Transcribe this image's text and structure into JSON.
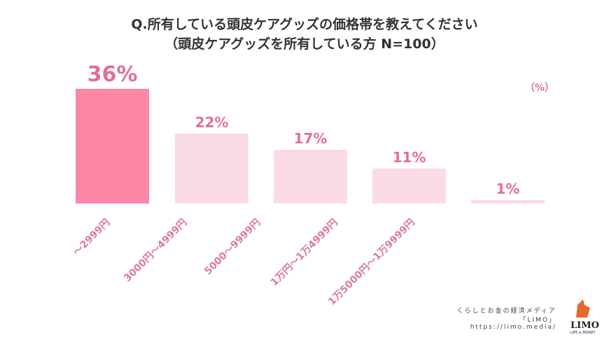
{
  "chart_data": {
    "type": "bar",
    "title": "Q.所有している頭皮ケアグッズの価格帯を教えてください",
    "subtitle": "（頭皮ケアグッズを所有している方 N=100）",
    "unit": "（%）",
    "categories": [
      "～2999円",
      "3000円～4999円",
      "5000～9999円",
      "1万円～1万4999円",
      "1万5000円～1万9999円"
    ],
    "values": [
      36,
      22,
      17,
      11,
      1
    ],
    "value_labels": [
      "36%",
      "22%",
      "17%",
      "11%",
      "1%"
    ],
    "ylim": [
      0,
      36
    ],
    "colors": {
      "highlight": "#fc87a6",
      "normal": "#fcdce4"
    }
  },
  "footer": {
    "line1": "くらしとお金の経済メディア",
    "line2": "「LIMO」",
    "line3": "https://limo.media/"
  },
  "logo": {
    "name": "LIMO",
    "tagline": "LIFE & MONEY"
  }
}
